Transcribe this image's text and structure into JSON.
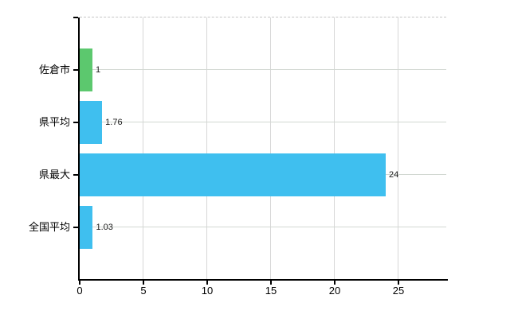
{
  "chart_data": {
    "type": "bar",
    "orientation": "horizontal",
    "title": "",
    "xlabel": "",
    "ylabel": "",
    "legend": "none",
    "grid": true,
    "categories": [
      "佐倉市",
      "県平均",
      "県最大",
      "全国平均"
    ],
    "values": [
      1,
      1.76,
      24,
      1.03
    ],
    "value_labels": [
      "1",
      "1.76",
      "24",
      "1.03"
    ],
    "bar_colors": [
      "#5cc86e",
      "#3fbfef",
      "#3fbfef",
      "#3fbfef"
    ],
    "x_tick_values": [
      0,
      5,
      10,
      15,
      20,
      25
    ],
    "x_tick_labels": [
      "0",
      "5",
      "10",
      "15",
      "20",
      "25"
    ],
    "xlim": [
      0,
      28.75
    ],
    "colors": {
      "green_bar": "#5cc86e",
      "blue_bar": "#3fbfef",
      "grid_line": "#d5d5d5",
      "dashed_border": "#c6c6c6",
      "axis_line": "#000000",
      "text": "#000000",
      "background": "#ffffff"
    }
  }
}
